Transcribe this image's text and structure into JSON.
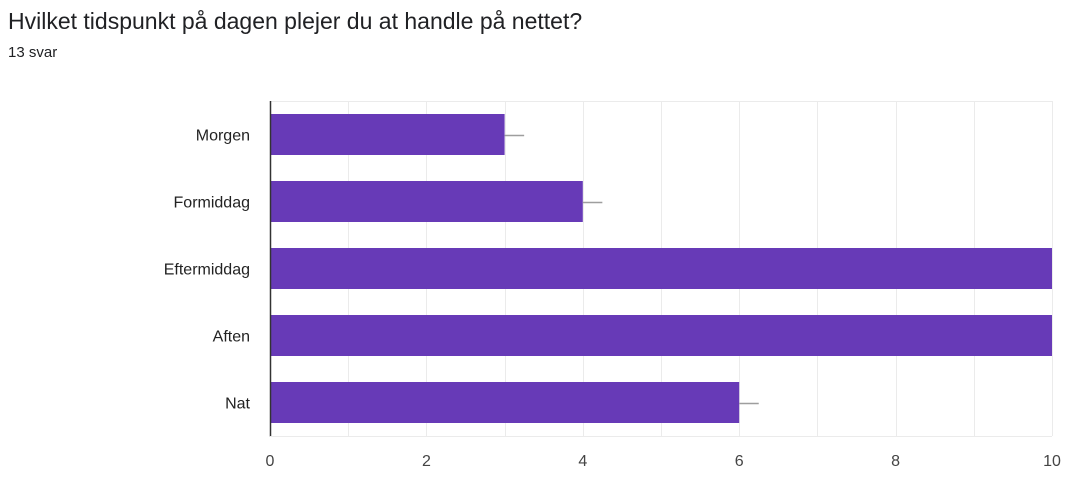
{
  "question": {
    "title": "Hvilket tidspunkt på dagen plejer du at handle på nettet?",
    "response_count": "13 svar"
  },
  "colors": {
    "bar": "#673ab7",
    "grid": "#ebebeb",
    "axis": "#333333",
    "error_bar": "#9e9e9e"
  },
  "chart_data": {
    "type": "bar",
    "orientation": "horizontal",
    "title": "",
    "xlabel": "",
    "ylabel": "",
    "categories": [
      "Morgen",
      "Formiddag",
      "Eftermiddag",
      "Aften",
      "Nat"
    ],
    "values": [
      3,
      4,
      10,
      10,
      6
    ],
    "error_bar_upper": [
      3.25,
      4.25,
      10,
      10,
      6.25
    ],
    "xlim": [
      0,
      10
    ],
    "x_ticks": [
      0,
      2,
      4,
      6,
      8,
      10
    ],
    "grid": true,
    "legend": "none"
  }
}
